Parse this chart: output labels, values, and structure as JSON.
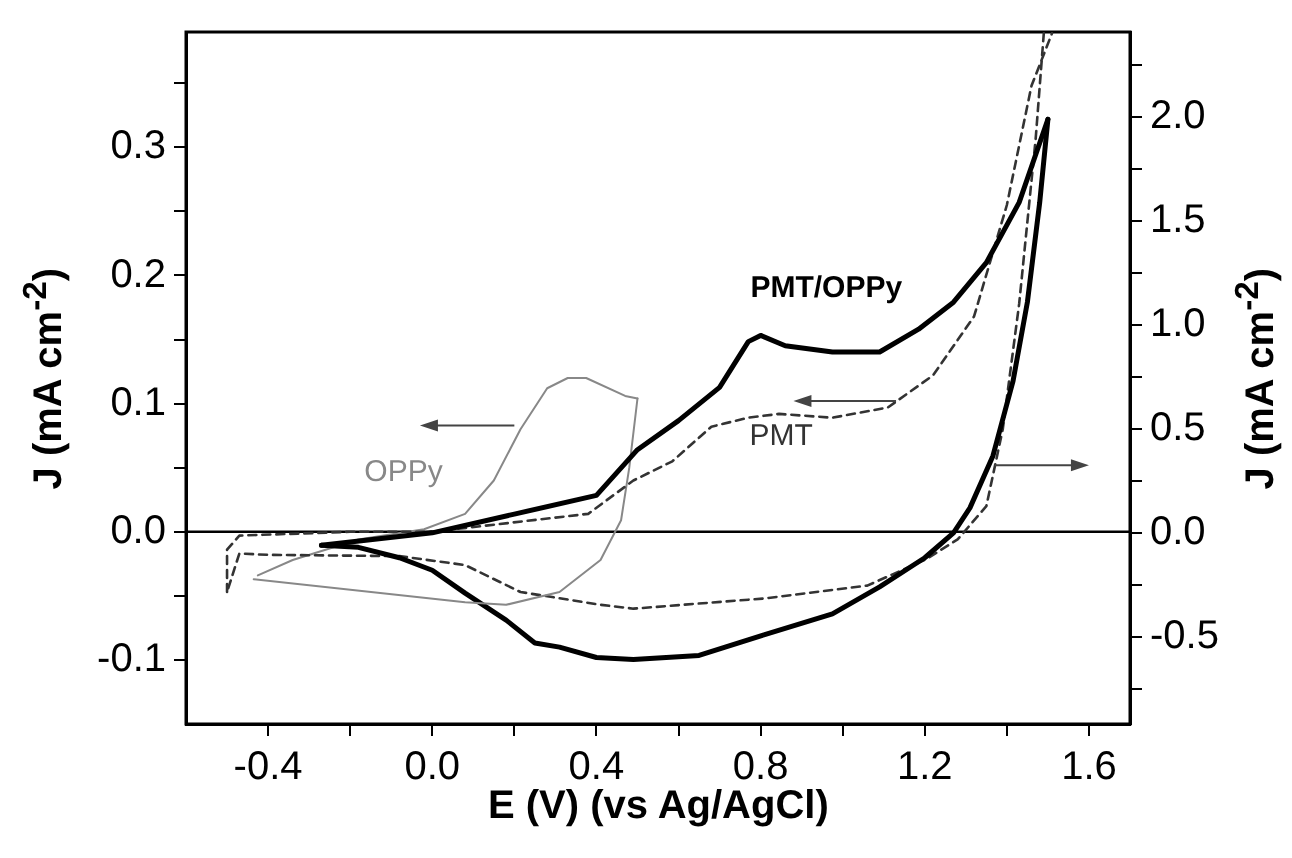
{
  "chart_data": {
    "type": "line",
    "xlabel": "E (V) (vs Ag/AgCl)",
    "ylabel": "J (mA cm$^{-2}$)",
    "y2label": "J (mA cm$^{-2}$)",
    "xlim": [
      -0.6,
      1.7
    ],
    "xticks": [
      -0.4,
      {
        "value": -0.2,
        "label": null
      },
      {
        "value": 0,
        "label": "0.0"
      },
      {
        "value": 0.2,
        "label": null
      },
      0.4,
      {
        "value": 0.6,
        "label": null
      },
      0.8,
      {
        "value": 1.0,
        "label": null
      },
      1.2,
      {
        "value": 1.4,
        "label": null
      },
      1.6
    ],
    "ylim": [
      -0.15,
      0.39
    ],
    "yticks": [
      -0.1,
      {
        "value": -0.05,
        "label": null
      },
      {
        "value": 0,
        "label": "0.0"
      },
      {
        "value": 0.05,
        "label": null
      },
      0.1,
      {
        "value": 0.15,
        "label": null
      },
      0.2,
      {
        "value": 0.25,
        "label": null
      },
      0.3,
      {
        "value": 0.35,
        "label": null
      }
    ],
    "y2lim": [
      -0.92,
      2.41
    ],
    "y2ticks": [
      {
        "value": -0.75,
        "label": null
      },
      -0.5,
      {
        "value": -0.25,
        "label": null
      },
      {
        "value": 0,
        "label": "0.0"
      },
      {
        "value": 0.25,
        "label": null
      },
      0.5,
      {
        "value": 0.75,
        "label": null
      },
      {
        "value": 1,
        "label": "1.0"
      },
      {
        "value": 1.25,
        "label": null
      },
      1.5,
      {
        "value": 1.75,
        "label": null
      },
      {
        "value": 2,
        "label": "2.0"
      },
      {
        "value": 2.25,
        "label": null
      }
    ],
    "grid": false,
    "legend": false,
    "marker": "none",
    "ref_lines": [
      {
        "axis": "y",
        "value": 0,
        "color": "#000000"
      }
    ],
    "series": [
      {
        "name": "PMT/OPPy",
        "color": "#000000",
        "axis": "y2",
        "line_style": "solid",
        "x": [
          -0.27,
          0.0,
          0.2,
          0.4,
          0.5,
          0.6,
          0.7,
          0.77,
          0.8,
          0.86,
          0.975,
          1.09,
          1.185,
          1.27,
          1.35,
          1.43,
          1.5
        ],
        "values": [
          -0.06,
          0.0,
          0.09,
          0.18,
          0.4,
          0.54,
          0.7,
          0.92,
          0.95,
          0.9,
          0.87,
          0.87,
          0.98,
          1.11,
          1.3,
          1.59,
          1.99
        ]
      },
      {
        "name": "PMT",
        "color": "#333333",
        "axis": "y",
        "line_style": "dashed",
        "x": [
          -0.5,
          -0.5,
          -0.47,
          -0.2,
          0.0,
          0.38,
          0.49,
          0.585,
          0.68,
          0.77,
          0.845,
          0.975,
          1.11,
          1.22,
          1.32,
          1.4,
          1.46,
          1.51
        ],
        "values": [
          -0.047,
          -0.014,
          -0.003,
          0.0,
          0.0,
          0.014,
          0.04,
          0.055,
          0.082,
          0.089,
          0.092,
          0.089,
          0.097,
          0.122,
          0.168,
          0.255,
          0.348,
          0.389
        ]
      },
      {
        "name": "OPPy",
        "color": "#888888",
        "axis": "y",
        "line_style": "solid",
        "x": [
          -0.435,
          0.08,
          0.18,
          0.31,
          0.41,
          0.46,
          0.48,
          0.5
        ],
        "values": [
          -0.037,
          -0.055,
          -0.057,
          -0.047,
          -0.022,
          0.009,
          0.05,
          0.104
        ]
      },
      {
        "color": "#000000",
        "axis": "y2",
        "line_style": "solid",
        "x": [
          1.5,
          1.48,
          1.45,
          1.415,
          1.366,
          1.31,
          1.27,
          1.2,
          1.09,
          0.975,
          0.81,
          0.65,
          0.49,
          0.4,
          0.31,
          0.25,
          0.18,
          0.08,
          0.0,
          -0.08,
          -0.18,
          -0.27
        ],
        "values": [
          1.99,
          1.59,
          1.11,
          0.73,
          0.37,
          0.12,
          0.0,
          -0.12,
          -0.26,
          -0.39,
          -0.49,
          -0.59,
          -0.61,
          -0.6,
          -0.55,
          -0.53,
          -0.42,
          -0.29,
          -0.18,
          -0.12,
          -0.07,
          -0.06
        ]
      },
      {
        "color": "#333333",
        "axis": "y",
        "line_style": "dashed",
        "x": [
          1.49,
          1.47,
          1.43,
          1.39,
          1.35,
          1.28,
          1.2,
          1.06,
          0.81,
          0.49,
          0.41,
          0.215,
          0.08,
          -0.08,
          -0.4,
          -0.47,
          -0.5
        ],
        "values": [
          0.389,
          0.306,
          0.178,
          0.08,
          0.02,
          -0.006,
          -0.022,
          -0.042,
          -0.052,
          -0.06,
          -0.057,
          -0.047,
          -0.026,
          -0.019,
          -0.018,
          -0.017,
          -0.047
        ]
      },
      {
        "color": "#888888",
        "axis": "y",
        "line_style": "solid",
        "x": [
          0.5,
          0.47,
          0.375,
          0.33,
          0.28,
          0.215,
          0.15,
          0.08,
          -0.02,
          -0.18,
          -0.34,
          -0.425
        ],
        "values": [
          0.104,
          0.106,
          0.12,
          0.12,
          0.112,
          0.08,
          0.04,
          0.014,
          0.002,
          -0.006,
          -0.022,
          -0.034
        ]
      }
    ]
  }
}
